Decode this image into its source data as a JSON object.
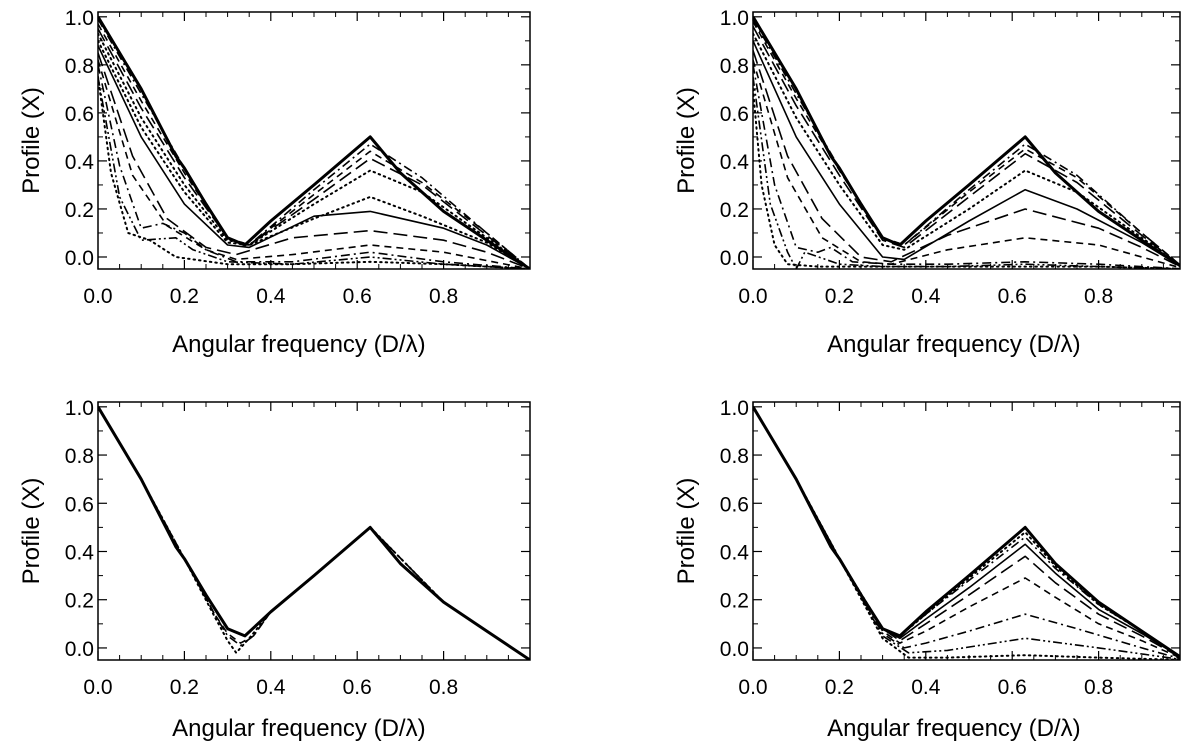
{
  "chart_data": [
    {
      "type": "line",
      "xlabel": "Angular frequency (D/λ)",
      "ylabel": "Profile (X)",
      "xlim": [
        0.0,
        1.0
      ],
      "ylim": [
        -0.05,
        1.02
      ],
      "xticks": [
        0.0,
        0.2,
        0.4,
        0.6,
        0.8
      ],
      "yticks": [
        0.0,
        0.2,
        0.4,
        0.6,
        0.8,
        1.0
      ],
      "series": [
        {
          "style": "solid-thick",
          "x": [
            0,
            0.1,
            0.18,
            0.2,
            0.25,
            0.3,
            0.34,
            0.4,
            0.5,
            0.63,
            0.7,
            0.8,
            0.9,
            1.0
          ],
          "y": [
            1.0,
            0.7,
            0.42,
            0.37,
            0.22,
            0.08,
            0.05,
            0.15,
            0.3,
            0.5,
            0.35,
            0.19,
            0.07,
            -0.05
          ]
        },
        {
          "style": "dashdot",
          "x": [
            0,
            0.1,
            0.2,
            0.3,
            0.35,
            0.5,
            0.63,
            0.75,
            0.9,
            1.0
          ],
          "y": [
            0.99,
            0.68,
            0.37,
            0.08,
            0.05,
            0.28,
            0.47,
            0.33,
            0.1,
            -0.05
          ]
        },
        {
          "style": "dashed",
          "x": [
            0,
            0.1,
            0.2,
            0.3,
            0.35,
            0.5,
            0.63,
            0.75,
            0.9,
            1.0
          ],
          "y": [
            0.97,
            0.65,
            0.35,
            0.08,
            0.05,
            0.26,
            0.44,
            0.31,
            0.1,
            -0.05
          ]
        },
        {
          "style": "dashed-long",
          "x": [
            0,
            0.1,
            0.2,
            0.3,
            0.35,
            0.5,
            0.63,
            0.75,
            0.9,
            1.0
          ],
          "y": [
            0.95,
            0.62,
            0.33,
            0.08,
            0.05,
            0.24,
            0.41,
            0.3,
            0.09,
            -0.05
          ]
        },
        {
          "style": "dotted",
          "x": [
            0,
            0.1,
            0.2,
            0.3,
            0.35,
            0.5,
            0.63,
            0.75,
            0.9,
            1.0
          ],
          "y": [
            0.93,
            0.58,
            0.3,
            0.07,
            0.05,
            0.22,
            0.36,
            0.27,
            0.08,
            -0.05
          ]
        },
        {
          "style": "dotted",
          "x": [
            0,
            0.1,
            0.2,
            0.3,
            0.35,
            0.5,
            0.63,
            0.75,
            0.9,
            1.0
          ],
          "y": [
            0.9,
            0.54,
            0.27,
            0.06,
            0.05,
            0.16,
            0.25,
            0.17,
            0.06,
            -0.05
          ]
        },
        {
          "style": "solid",
          "x": [
            0,
            0.1,
            0.2,
            0.3,
            0.35,
            0.5,
            0.63,
            0.8,
            0.9,
            1.0
          ],
          "y": [
            0.88,
            0.5,
            0.22,
            0.05,
            0.04,
            0.17,
            0.19,
            0.12,
            0.05,
            -0.05
          ]
        },
        {
          "style": "dashed-long",
          "x": [
            0,
            0.08,
            0.16,
            0.25,
            0.32,
            0.45,
            0.63,
            0.8,
            0.9,
            1.0
          ],
          "y": [
            0.85,
            0.42,
            0.16,
            0.04,
            0.01,
            0.08,
            0.11,
            0.07,
            0.02,
            -0.05
          ]
        },
        {
          "style": "dashed",
          "x": [
            0,
            0.08,
            0.16,
            0.25,
            0.32,
            0.45,
            0.63,
            0.8,
            1.0
          ],
          "y": [
            0.82,
            0.34,
            0.13,
            0.03,
            -0.01,
            0.01,
            0.05,
            0.02,
            -0.05
          ]
        },
        {
          "style": "dashdot",
          "x": [
            0,
            0.05,
            0.1,
            0.15,
            0.2,
            0.25,
            0.32,
            0.45,
            0.63,
            0.8,
            1.0
          ],
          "y": [
            0.8,
            0.38,
            0.12,
            0.14,
            0.1,
            0.03,
            -0.02,
            -0.02,
            0.02,
            -0.02,
            -0.05
          ]
        },
        {
          "style": "dashdotdot",
          "x": [
            0,
            0.05,
            0.1,
            0.18,
            0.22,
            0.3,
            0.45,
            0.63,
            0.8,
            1.0
          ],
          "y": [
            0.75,
            0.25,
            0.07,
            0.08,
            0.03,
            -0.02,
            -0.03,
            0.0,
            -0.03,
            -0.05
          ]
        },
        {
          "style": "dotted",
          "x": [
            0,
            0.03,
            0.07,
            0.12,
            0.18,
            0.3,
            0.45,
            0.63,
            0.8,
            1.0
          ],
          "y": [
            0.75,
            0.35,
            0.1,
            0.07,
            0.0,
            -0.03,
            -0.03,
            -0.02,
            -0.03,
            -0.05
          ]
        }
      ]
    },
    {
      "type": "line",
      "xlabel": "Angular frequency (D/λ)",
      "ylabel": "Profile (X)",
      "xlim": [
        0.0,
        1.0
      ],
      "ylim": [
        -0.05,
        1.02
      ],
      "xticks": [
        0.0,
        0.2,
        0.4,
        0.6,
        0.8
      ],
      "yticks": [
        0.0,
        0.2,
        0.4,
        0.6,
        0.8,
        1.0
      ],
      "series": [
        {
          "style": "solid-thick",
          "x": [
            0,
            0.1,
            0.18,
            0.2,
            0.25,
            0.3,
            0.34,
            0.4,
            0.5,
            0.63,
            0.7,
            0.8,
            0.9,
            1.0
          ],
          "y": [
            1.0,
            0.7,
            0.42,
            0.37,
            0.22,
            0.08,
            0.05,
            0.15,
            0.3,
            0.5,
            0.35,
            0.19,
            0.07,
            -0.05
          ]
        },
        {
          "style": "dashdot",
          "x": [
            0,
            0.1,
            0.2,
            0.3,
            0.35,
            0.5,
            0.63,
            0.75,
            0.9,
            1.0
          ],
          "y": [
            0.99,
            0.68,
            0.37,
            0.08,
            0.05,
            0.28,
            0.47,
            0.34,
            0.1,
            -0.05
          ]
        },
        {
          "style": "dashed",
          "x": [
            0,
            0.1,
            0.2,
            0.3,
            0.35,
            0.5,
            0.63,
            0.75,
            0.9,
            1.0
          ],
          "y": [
            0.98,
            0.66,
            0.36,
            0.08,
            0.05,
            0.27,
            0.45,
            0.33,
            0.1,
            -0.05
          ]
        },
        {
          "style": "dashed-long",
          "x": [
            0,
            0.1,
            0.2,
            0.3,
            0.35,
            0.5,
            0.63,
            0.75,
            0.9,
            1.0
          ],
          "y": [
            0.96,
            0.63,
            0.34,
            0.07,
            0.04,
            0.25,
            0.43,
            0.31,
            0.09,
            -0.05
          ]
        },
        {
          "style": "dotted",
          "x": [
            0,
            0.1,
            0.2,
            0.3,
            0.35,
            0.5,
            0.63,
            0.75,
            0.9,
            1.0
          ],
          "y": [
            0.93,
            0.58,
            0.3,
            0.05,
            0.03,
            0.2,
            0.36,
            0.27,
            0.08,
            -0.05
          ]
        },
        {
          "style": "solid",
          "x": [
            0,
            0.1,
            0.2,
            0.3,
            0.35,
            0.5,
            0.63,
            0.75,
            0.9,
            1.0
          ],
          "y": [
            0.9,
            0.5,
            0.22,
            0.0,
            -0.01,
            0.15,
            0.28,
            0.2,
            0.06,
            -0.05
          ]
        },
        {
          "style": "dashed-long",
          "x": [
            0,
            0.08,
            0.16,
            0.25,
            0.32,
            0.45,
            0.63,
            0.8,
            0.9,
            1.0
          ],
          "y": [
            0.86,
            0.42,
            0.16,
            0.0,
            -0.02,
            0.09,
            0.2,
            0.12,
            0.04,
            -0.05
          ]
        },
        {
          "style": "dashed",
          "x": [
            0,
            0.08,
            0.16,
            0.25,
            0.32,
            0.45,
            0.63,
            0.8,
            1.0
          ],
          "y": [
            0.82,
            0.33,
            0.08,
            -0.02,
            -0.03,
            0.03,
            0.08,
            0.05,
            -0.05
          ]
        },
        {
          "style": "dashdot",
          "x": [
            0,
            0.05,
            0.1,
            0.15,
            0.18,
            0.23,
            0.32,
            0.45,
            0.63,
            0.8,
            1.0
          ],
          "y": [
            0.8,
            0.3,
            0.04,
            0.02,
            0.04,
            -0.02,
            -0.03,
            -0.03,
            -0.02,
            -0.03,
            -0.05
          ]
        },
        {
          "style": "dashdotdot",
          "x": [
            0,
            0.04,
            0.08,
            0.1,
            0.12,
            0.2,
            0.3,
            0.45,
            0.63,
            0.8,
            1.0
          ],
          "y": [
            0.75,
            0.22,
            0.02,
            -0.05,
            0.02,
            -0.03,
            -0.04,
            -0.04,
            -0.03,
            -0.04,
            -0.05
          ]
        },
        {
          "style": "dotted",
          "x": [
            0,
            0.02,
            0.05,
            0.08,
            0.15,
            0.3,
            0.45,
            0.63,
            0.8,
            1.0
          ],
          "y": [
            0.7,
            0.3,
            0.05,
            -0.03,
            -0.04,
            -0.04,
            -0.04,
            -0.04,
            -0.04,
            -0.05
          ]
        }
      ]
    },
    {
      "type": "line",
      "xlabel": "Angular frequency (D/λ)",
      "ylabel": "Profile (X)",
      "xlim": [
        0.0,
        1.0
      ],
      "ylim": [
        -0.05,
        1.02
      ],
      "xticks": [
        0.0,
        0.2,
        0.4,
        0.6,
        0.8
      ],
      "yticks": [
        0.0,
        0.2,
        0.4,
        0.6,
        0.8,
        1.0
      ],
      "series": [
        {
          "style": "solid-thick",
          "x": [
            0,
            0.1,
            0.18,
            0.2,
            0.25,
            0.3,
            0.34,
            0.4,
            0.5,
            0.63,
            0.7,
            0.8,
            0.9,
            1.0
          ],
          "y": [
            1.0,
            0.7,
            0.42,
            0.37,
            0.22,
            0.08,
            0.05,
            0.15,
            0.3,
            0.5,
            0.35,
            0.19,
            0.07,
            -0.05
          ]
        },
        {
          "style": "dashed",
          "x": [
            0,
            0.1,
            0.2,
            0.27,
            0.3,
            0.33,
            0.36,
            0.4,
            0.5,
            0.63,
            0.8,
            1.0
          ],
          "y": [
            1.0,
            0.7,
            0.37,
            0.14,
            0.06,
            0.02,
            0.05,
            0.15,
            0.3,
            0.5,
            0.19,
            -0.05
          ]
        },
        {
          "style": "dotted",
          "x": [
            0,
            0.1,
            0.2,
            0.27,
            0.3,
            0.32,
            0.35,
            0.4,
            0.5,
            0.63,
            0.8,
            1.0
          ],
          "y": [
            1.0,
            0.7,
            0.37,
            0.13,
            0.03,
            -0.02,
            0.04,
            0.15,
            0.3,
            0.5,
            0.19,
            -0.05
          ]
        },
        {
          "style": "dashdot",
          "x": [
            0,
            0.1,
            0.2,
            0.27,
            0.3,
            0.33,
            0.36,
            0.4,
            0.5,
            0.63,
            0.8,
            1.0
          ],
          "y": [
            1.0,
            0.7,
            0.37,
            0.14,
            0.05,
            0.01,
            0.05,
            0.15,
            0.3,
            0.5,
            0.19,
            -0.05
          ]
        }
      ]
    },
    {
      "type": "line",
      "xlabel": "Angular frequency (D/λ)",
      "ylabel": "Profile (X)",
      "xlim": [
        0.0,
        1.0
      ],
      "ylim": [
        -0.05,
        1.02
      ],
      "xticks": [
        0.0,
        0.2,
        0.4,
        0.6,
        0.8
      ],
      "yticks": [
        0.0,
        0.2,
        0.4,
        0.6,
        0.8,
        1.0
      ],
      "series": [
        {
          "style": "solid-thick",
          "x": [
            0,
            0.1,
            0.18,
            0.2,
            0.25,
            0.3,
            0.34,
            0.4,
            0.5,
            0.63,
            0.7,
            0.8,
            0.9,
            1.0
          ],
          "y": [
            1.0,
            0.7,
            0.42,
            0.37,
            0.22,
            0.08,
            0.05,
            0.15,
            0.3,
            0.5,
            0.35,
            0.19,
            0.07,
            -0.05
          ]
        },
        {
          "style": "dotted",
          "x": [
            0,
            0.1,
            0.2,
            0.3,
            0.34,
            0.4,
            0.5,
            0.63,
            0.7,
            0.8,
            0.9,
            1.0
          ],
          "y": [
            1.0,
            0.7,
            0.37,
            0.08,
            0.05,
            0.14,
            0.29,
            0.48,
            0.34,
            0.18,
            0.07,
            -0.05
          ]
        },
        {
          "style": "dashdot",
          "x": [
            0,
            0.1,
            0.2,
            0.3,
            0.34,
            0.4,
            0.5,
            0.63,
            0.7,
            0.8,
            0.9,
            1.0
          ],
          "y": [
            1.0,
            0.7,
            0.37,
            0.08,
            0.05,
            0.14,
            0.28,
            0.46,
            0.33,
            0.18,
            0.07,
            -0.05
          ]
        },
        {
          "style": "solid",
          "x": [
            0,
            0.1,
            0.2,
            0.3,
            0.34,
            0.4,
            0.5,
            0.63,
            0.7,
            0.8,
            0.9,
            1.0
          ],
          "y": [
            1.0,
            0.7,
            0.37,
            0.08,
            0.04,
            0.12,
            0.25,
            0.43,
            0.31,
            0.16,
            0.06,
            -0.05
          ]
        },
        {
          "style": "dashed-long",
          "x": [
            0,
            0.1,
            0.2,
            0.3,
            0.34,
            0.4,
            0.5,
            0.63,
            0.7,
            0.8,
            0.9,
            1.0
          ],
          "y": [
            1.0,
            0.7,
            0.37,
            0.08,
            0.03,
            0.1,
            0.22,
            0.38,
            0.27,
            0.14,
            0.05,
            -0.05
          ]
        },
        {
          "style": "dashed",
          "x": [
            0,
            0.1,
            0.2,
            0.3,
            0.34,
            0.4,
            0.5,
            0.63,
            0.7,
            0.8,
            0.9,
            1.0
          ],
          "y": [
            1.0,
            0.7,
            0.37,
            0.07,
            0.02,
            0.07,
            0.17,
            0.29,
            0.21,
            0.1,
            0.03,
            -0.05
          ]
        },
        {
          "style": "dashdot",
          "x": [
            0,
            0.1,
            0.2,
            0.3,
            0.35,
            0.4,
            0.5,
            0.63,
            0.75,
            0.9,
            1.0
          ],
          "y": [
            1.0,
            0.7,
            0.37,
            0.06,
            0.0,
            0.02,
            0.07,
            0.14,
            0.08,
            0.0,
            -0.05
          ]
        },
        {
          "style": "dashdotdot",
          "x": [
            0,
            0.1,
            0.2,
            0.3,
            0.36,
            0.45,
            0.63,
            0.8,
            1.0
          ],
          "y": [
            1.0,
            0.7,
            0.37,
            0.05,
            -0.02,
            -0.01,
            0.04,
            0.0,
            -0.05
          ]
        },
        {
          "style": "dotted",
          "x": [
            0,
            0.1,
            0.2,
            0.3,
            0.36,
            0.45,
            0.63,
            0.8,
            1.0
          ],
          "y": [
            1.0,
            0.7,
            0.37,
            0.04,
            -0.04,
            -0.04,
            -0.03,
            -0.04,
            -0.05
          ]
        }
      ]
    }
  ]
}
